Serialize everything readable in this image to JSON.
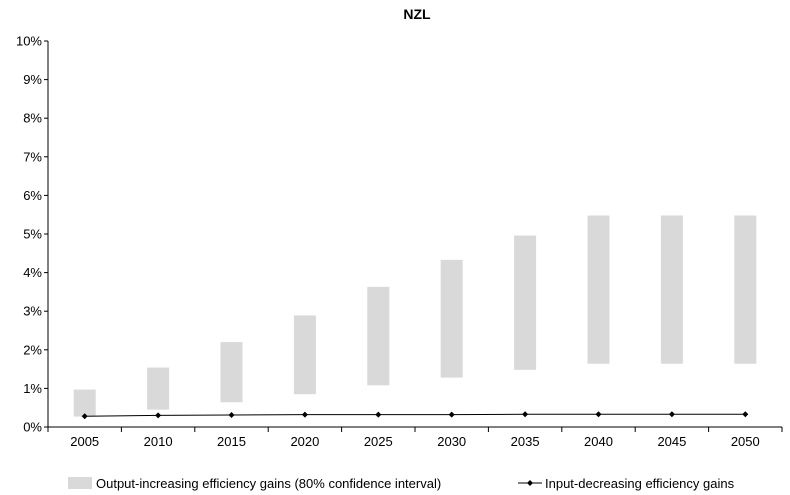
{
  "chart_data": {
    "type": "bar",
    "title": "NZL",
    "categories": [
      "2005",
      "2010",
      "2015",
      "2020",
      "2025",
      "2030",
      "2035",
      "2040",
      "2045",
      "2050"
    ],
    "y_ticks": [
      "0%",
      "1%",
      "2%",
      "3%",
      "4%",
      "5%",
      "6%",
      "7%",
      "8%",
      "9%",
      "10%"
    ],
    "ylim": [
      0,
      10
    ],
    "grid": false,
    "legend_position": "bottom",
    "series": [
      {
        "name": "Output-increasing efficiency gains (80% confidence interval)",
        "type": "range-bar",
        "color": "#d9d9d9",
        "low": [
          0.27,
          0.45,
          0.64,
          0.85,
          1.08,
          1.28,
          1.48,
          1.64,
          1.64,
          1.64
        ],
        "high": [
          0.97,
          1.54,
          2.2,
          2.89,
          3.63,
          4.33,
          4.96,
          5.48,
          5.48,
          5.48
        ]
      },
      {
        "name": "Input-decreasing efficiency gains",
        "type": "line",
        "color": "#000000",
        "values": [
          0.28,
          0.3,
          0.31,
          0.32,
          0.32,
          0.32,
          0.33,
          0.33,
          0.33,
          0.33
        ]
      }
    ]
  }
}
